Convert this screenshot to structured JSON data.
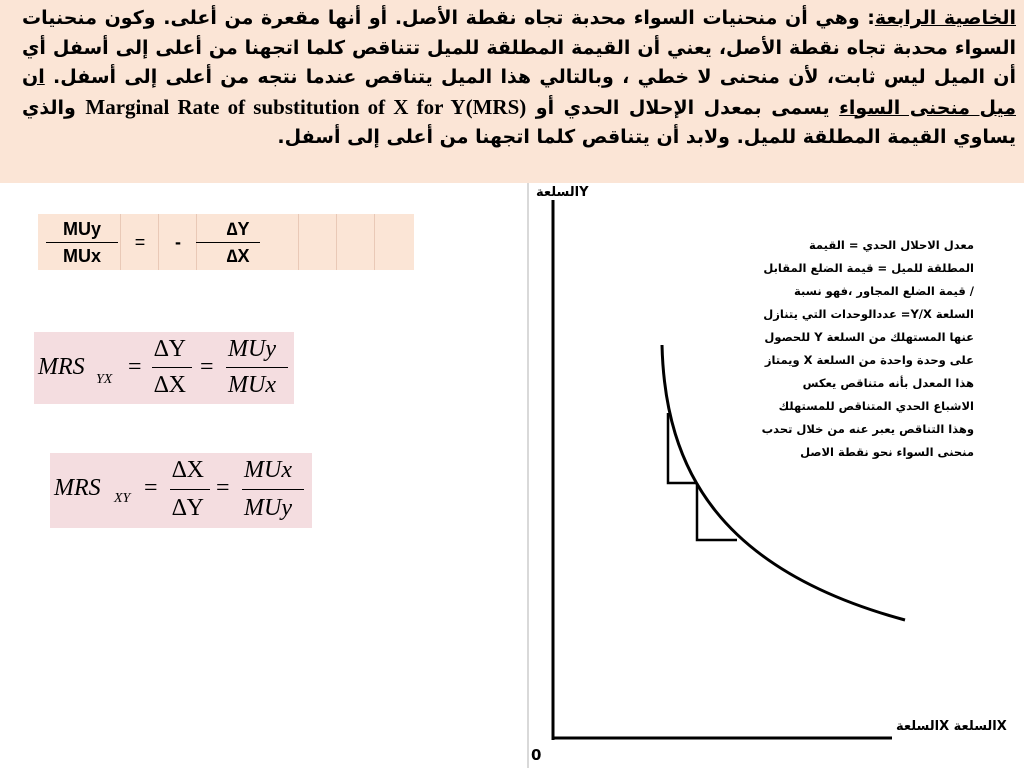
{
  "paragraph": {
    "heading": "الخاصية الرابعة",
    "body_1": ": وهي أن منحنيات السواء محدبة تجاه نقطة الأصل. أو أنها مقعرة من أعلى. وكون منحنيات السواء محدبة تجاه نقطة الأصل، يعني أن القيمة المطلقة للميل تتناقص كلما اتجهنا من أعلى إلى أسفل أي أن الميل ليس ثابت، لأن منحنى لا خطي ، وبالتالي هذا الميل يتناقص عندما نتجه من أعلى إلى أسفل. ",
    "underline_phrase": "ان ميل منحنى السواء",
    "body_2": " يسمى بمعدل الإحلال الحدي أو ",
    "english_term": "Marginal Rate of substitution of X for Y(MRS)",
    "body_3": " والذي يساوي القيمة المطلقة للميل. ولابد أن يتناقص كلما اتجهنا من أعلى إلى أسفل."
  },
  "ratio_box": {
    "mu_top": "MUy",
    "mu_bottom": "MUx",
    "equals": "=",
    "minus": "-",
    "delta_top": "∆Y",
    "delta_bottom": "∆X"
  },
  "formula_yx": {
    "lhs": "MRS",
    "sub": "YX",
    "eq1": "=",
    "frac1_num": "∆Y",
    "frac1_den": "∆X",
    "eq2": "=",
    "frac2_num": "MUy",
    "frac2_den": "MUx"
  },
  "formula_xy": {
    "lhs": "MRS",
    "sub": "XY",
    "eq1": "=",
    "frac1_num": "∆X",
    "frac1_den": "∆Y",
    "eq2": "=",
    "frac2_num": "MUx",
    "frac2_den": "MUy"
  },
  "chart": {
    "y_axis_label": "السلعةY",
    "x_axis_label": "السلعةX السلعةX",
    "origin_label": "0",
    "annotation": "معدل الاحلال الحدي = القيمة المطلقة للميل = قيمة الضلع المقابل / قيمة الضلع المجاور ،فهو نسبة السلعة Y/X= عددالوحدات التي يتنازل عنها المستهلك من السلعة Y للحصول على وحدة واحدة من السلعة X ويمتاز هذا المعدل بأنه متناقص يعكس الاشباع الحدي المتناقص للمستهلك وهذا التناقص يعبر عنه من خلال تحدب منحنى السواء نحو نقطة الاصل",
    "axis_color": "#000000",
    "curve_color": "#000000"
  }
}
